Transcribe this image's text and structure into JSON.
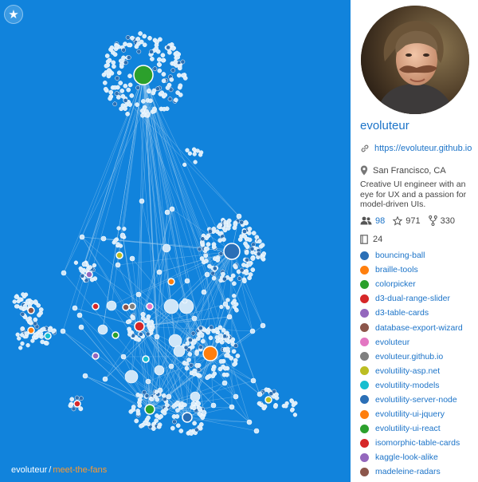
{
  "graph": {
    "background": "#1183dc",
    "icons": {
      "favorite": "star-icon"
    },
    "breadcrumb": {
      "user": "evoluteur",
      "separator": "/",
      "project": "meet-the-fans"
    }
  },
  "profile": {
    "name": "evoluteur",
    "url": "https://evoluteur.github.io",
    "location": "San Francisco, CA",
    "bio": "Creative UI engineer with an eye for UX and a passion for model-driven UIs.",
    "stats": {
      "fans": "98",
      "stars": "971",
      "forks": "330",
      "repos": "24"
    },
    "icons": {
      "url": "link-icon",
      "location": "map-pin-icon",
      "fans": "people-icon",
      "stars": "star-outline-icon",
      "forks": "fork-icon",
      "repos": "book-icon"
    }
  },
  "repos": [
    {
      "name": "bouncing-ball",
      "color": "#2b6fb6"
    },
    {
      "name": "braille-tools",
      "color": "#ff7f0e"
    },
    {
      "name": "colorpicker",
      "color": "#2ca02c"
    },
    {
      "name": "d3-dual-range-slider",
      "color": "#d62728"
    },
    {
      "name": "d3-table-cards",
      "color": "#9467bd"
    },
    {
      "name": "database-export-wizard",
      "color": "#8c564b"
    },
    {
      "name": "evoluteur",
      "color": "#e377c2"
    },
    {
      "name": "evoluteur.github.io",
      "color": "#7f7f7f"
    },
    {
      "name": "evolutility-asp.net",
      "color": "#bcbd22"
    },
    {
      "name": "evolutility-models",
      "color": "#17becf"
    },
    {
      "name": "evolutility-server-node",
      "color": "#2b6fb6"
    },
    {
      "name": "evolutility-ui-jquery",
      "color": "#ff7f0e"
    },
    {
      "name": "evolutility-ui-react",
      "color": "#2ca02c"
    },
    {
      "name": "isomorphic-table-cards",
      "color": "#d62728"
    },
    {
      "name": "kaggle-look-alike",
      "color": "#9467bd"
    },
    {
      "name": "madeleine-radars",
      "color": "#8c564b"
    }
  ]
}
